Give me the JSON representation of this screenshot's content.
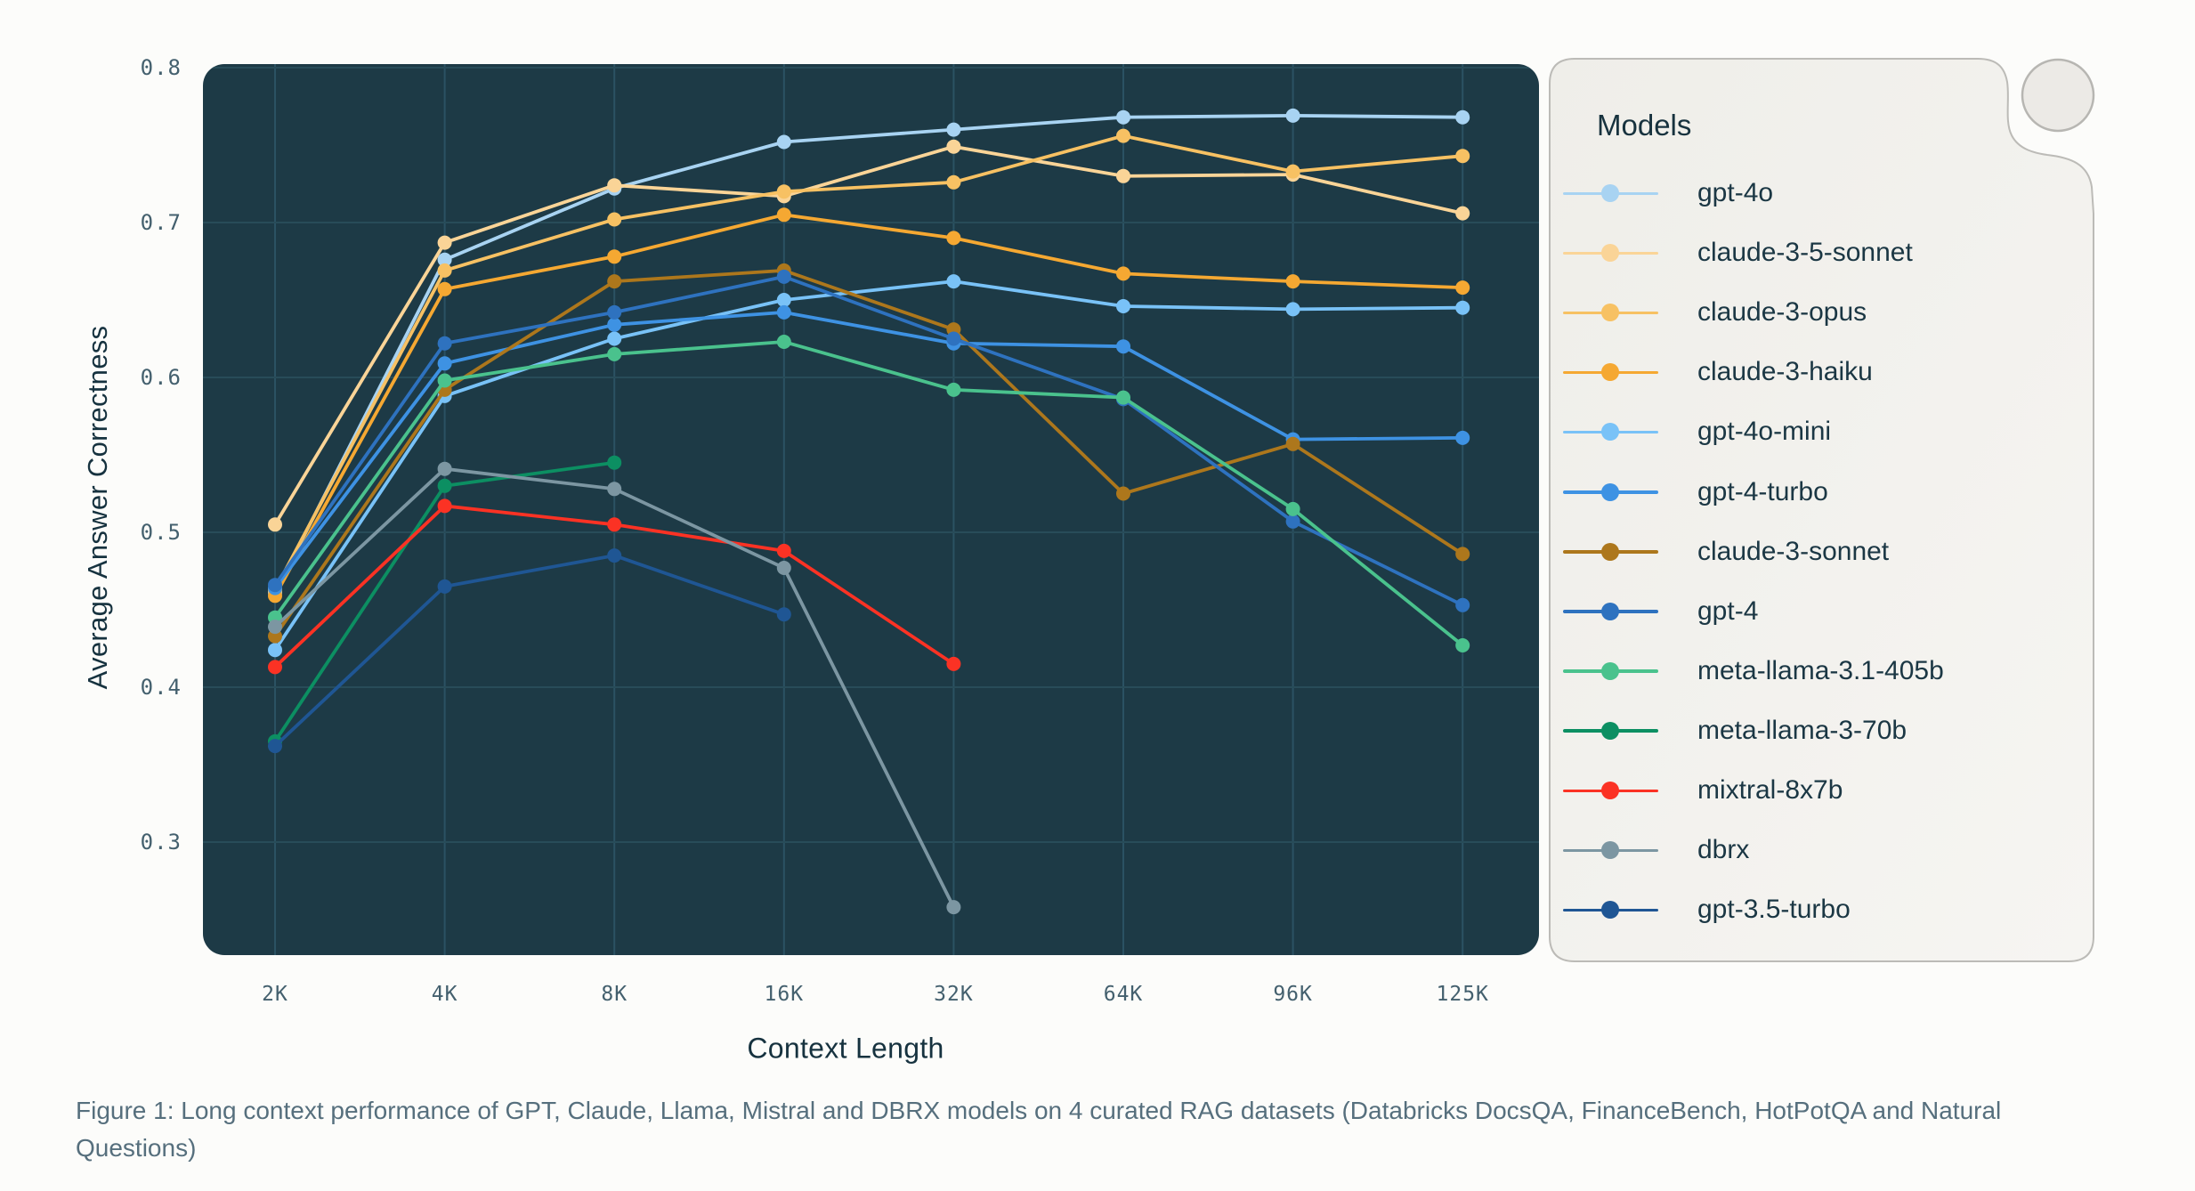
{
  "page": {
    "background": "#fcfcfa"
  },
  "chart_data": {
    "type": "line",
    "title": "",
    "xlabel": "Context Length",
    "ylabel": "Average Answer Correctness",
    "categories": [
      "2K",
      "4K",
      "8K",
      "16K",
      "32K",
      "64K",
      "96K",
      "125K"
    ],
    "y_ticks": [
      "0.8",
      "0.7",
      "0.6",
      "0.5",
      "0.4",
      "0.3"
    ],
    "ylim": [
      0.228,
      0.802
    ],
    "grid": true,
    "legend_position": "right",
    "plot_background": "#1d3a46",
    "grid_color_horizontal": "#284c59",
    "grid_color_vertical": "#2b5263",
    "tick_color": "#44606e",
    "axis_title_color": "#16323f",
    "series": [
      {
        "name": "gpt-4o",
        "color": "#A8D3F2",
        "values": [
          0.461,
          0.676,
          0.722,
          0.752,
          0.76,
          0.768,
          0.769,
          0.768
        ]
      },
      {
        "name": "claude-3-5-sonnet",
        "color": "#FAD497",
        "values": [
          0.505,
          0.687,
          0.724,
          0.717,
          0.749,
          0.73,
          0.731,
          0.706
        ]
      },
      {
        "name": "claude-3-opus",
        "color": "#F7C163",
        "values": [
          0.463,
          0.669,
          0.702,
          0.72,
          0.726,
          0.756,
          0.733,
          0.743
        ]
      },
      {
        "name": "claude-3-haiku",
        "color": "#F5A832",
        "values": [
          0.459,
          0.657,
          0.678,
          0.705,
          0.69,
          0.667,
          0.662,
          0.658
        ]
      },
      {
        "name": "gpt-4o-mini",
        "color": "#79C2F7",
        "values": [
          0.424,
          0.588,
          0.625,
          0.65,
          0.662,
          0.646,
          0.644,
          0.645
        ]
      },
      {
        "name": "gpt-4-turbo",
        "color": "#3E92E3",
        "values": [
          0.464,
          0.609,
          0.634,
          0.642,
          0.622,
          0.62,
          0.56,
          0.561
        ]
      },
      {
        "name": "claude-3-sonnet",
        "color": "#AD771C",
        "values": [
          0.433,
          0.592,
          0.662,
          0.669,
          0.631,
          0.525,
          0.557,
          0.486
        ]
      },
      {
        "name": "gpt-4",
        "color": "#2E72BF",
        "values": [
          0.466,
          0.622,
          0.642,
          0.665,
          0.625,
          0.586,
          0.507,
          0.453
        ]
      },
      {
        "name": "meta-llama-3.1-405b",
        "color": "#4AC28D",
        "values": [
          0.445,
          0.598,
          0.615,
          0.623,
          0.592,
          0.587,
          0.515,
          0.427
        ]
      },
      {
        "name": "meta-llama-3-70b",
        "color": "#0C8F62",
        "values": [
          0.365,
          0.53,
          0.545,
          null,
          null,
          null,
          null,
          null
        ]
      },
      {
        "name": "mixtral-8x7b",
        "color": "#FB3224",
        "values": [
          0.413,
          0.517,
          0.505,
          0.488,
          0.415,
          null,
          null,
          null
        ]
      },
      {
        "name": "dbrx",
        "color": "#7C96A2",
        "values": [
          0.439,
          0.541,
          0.528,
          0.477,
          0.258,
          null,
          null,
          null
        ]
      },
      {
        "name": "gpt-3.5-turbo",
        "color": "#1F5694",
        "values": [
          0.362,
          0.465,
          0.485,
          0.447,
          null,
          null,
          null,
          null
        ]
      }
    ]
  },
  "legend": {
    "title": "Models"
  },
  "caption": "Figure 1: Long context performance of GPT, Claude, Llama, Mistral and DBRX models on 4 curated RAG datasets (Databricks DocsQA, FinanceBench, HotPotQA and Natural Questions)"
}
